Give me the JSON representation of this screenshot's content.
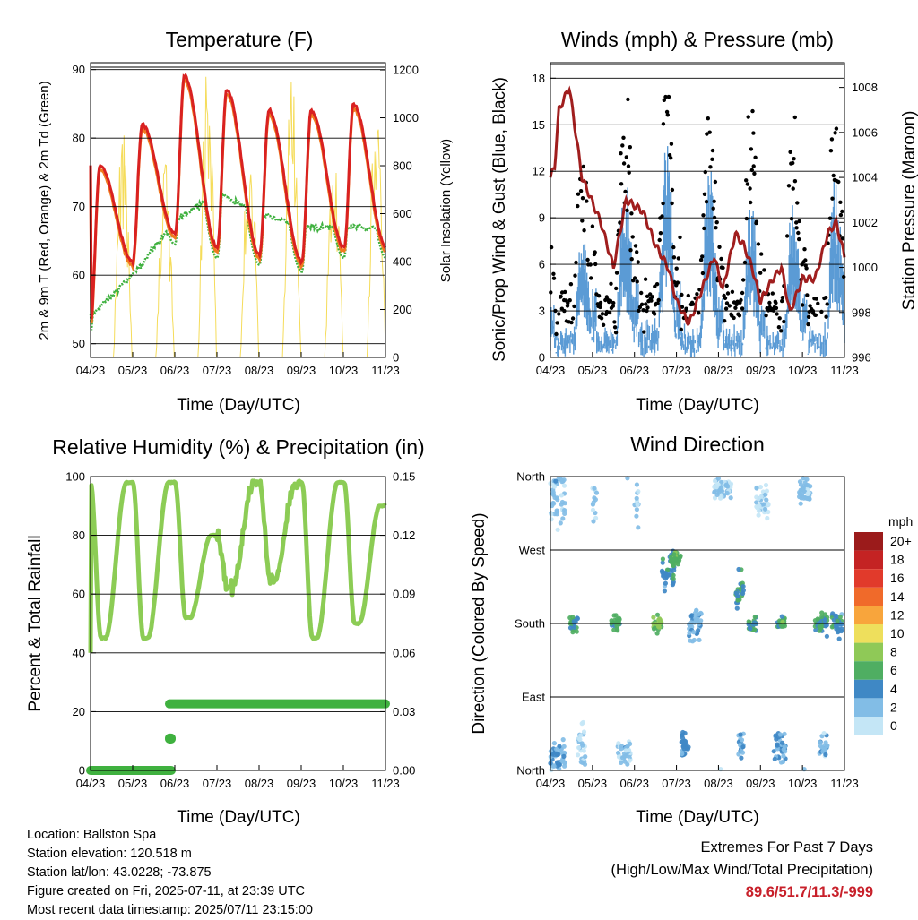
{
  "colors": {
    "temp2m": "#d92121",
    "temp9m": "#f07a1f",
    "dew": "#3fb13f",
    "solar": "#f5dc5a",
    "wind": "#5b9bd5",
    "gust": "#000000",
    "pressure": "#a01e1e",
    "rh": "#8ccc55",
    "rain": "#3fb13f",
    "extremes": "#c8202a"
  },
  "x_ticks": [
    "04/23",
    "05/23",
    "06/23",
    "07/23",
    "08/23",
    "09/23",
    "10/23",
    "11/23"
  ],
  "x_label": "Time (Day/UTC)",
  "panels": {
    "temperature": {
      "title": "Temperature (F)",
      "ylabel_left": "2m & 9m T (Red, Orange) & 2m Td (Green)",
      "ylabel_right": "Solar Insolation (Yellow)",
      "left_ticks": [
        "50",
        "60",
        "70",
        "80",
        "90"
      ],
      "right_ticks": [
        "0",
        "200",
        "400",
        "600",
        "800",
        "1000",
        "1200"
      ]
    },
    "winds": {
      "title": "Winds (mph) & Pressure (mb)",
      "ylabel_left": "Sonic/Prop Wind & Gust (Blue, Black)",
      "ylabel_right": "Station Pressure (Maroon)",
      "left_ticks": [
        "0",
        "3",
        "6",
        "9",
        "12",
        "15",
        "18"
      ],
      "right_ticks": [
        "996",
        "998",
        "1000",
        "1002",
        "1004",
        "1006",
        "1008"
      ]
    },
    "humidity": {
      "title": "Relative Humidity (%) & Precipitation (in)",
      "ylabel_left": "Percent & Total Rainfall",
      "left_ticks": [
        "0",
        "20",
        "40",
        "60",
        "80",
        "100"
      ],
      "right_ticks": [
        "0.00",
        "0.03",
        "0.06",
        "0.09",
        "0.12",
        "0.15"
      ]
    },
    "direction": {
      "title": "Wind Direction",
      "ylabel_left": "Direction (Colored By Speed)",
      "left_ticks": [
        "North",
        "East",
        "South",
        "West",
        "North"
      ],
      "legend_title": "mph",
      "legend_labels": [
        "20+",
        "18",
        "16",
        "14",
        "12",
        "10",
        "8",
        "6",
        "4",
        "2",
        "0"
      ],
      "legend_colors": [
        "#9b1b1b",
        "#c42323",
        "#e13a2b",
        "#f06a2a",
        "#f8a53c",
        "#eedf5c",
        "#8fc957",
        "#4fae62",
        "#3f88c5",
        "#82bde6",
        "#c4e6f6"
      ]
    }
  },
  "chart_data": [
    {
      "type": "line",
      "title": "Temperature (F)",
      "xlabel": "Time (Day/UTC)",
      "ylabel": "2m & 9m T (Red, Orange) & 2m Td (Green)",
      "y2label": "Solar Insolation (Yellow)",
      "x": [
        "04/23",
        "05/23",
        "06/23",
        "07/23",
        "08/23",
        "09/23",
        "10/23",
        "11/23"
      ],
      "ylim": [
        48,
        91
      ],
      "y2lim": [
        0,
        1230
      ],
      "series": [
        {
          "name": "2m T",
          "axis": "left",
          "values": [
            76,
            82,
            89,
            87,
            84,
            84,
            85,
            84
          ]
        },
        {
          "name": "2m Td",
          "axis": "left",
          "values": [
            55,
            62,
            73,
            70,
            67,
            67,
            67,
            67
          ]
        },
        {
          "name": "Solar Insolation",
          "axis": "right",
          "values": [
            0,
            950,
            1200,
            950,
            1200,
            900,
            1100,
            0
          ]
        }
      ]
    },
    {
      "type": "line",
      "title": "Winds (mph) & Pressure (mb)",
      "xlabel": "Time (Day/UTC)",
      "ylabel": "Sonic/Prop Wind & Gust (Blue, Black)",
      "y2label": "Station Pressure (Maroon)",
      "x": [
        "04/23",
        "05/23",
        "06/23",
        "07/23",
        "08/23",
        "09/23",
        "10/23",
        "11/23"
      ],
      "ylim": [
        0,
        19
      ],
      "y2lim": [
        996,
        1009.1
      ],
      "series": [
        {
          "name": "Station Pressure",
          "axis": "right",
          "values": [
            1004,
            1004,
            1001,
            999,
            1000,
            1001,
            999,
            1001
          ]
        },
        {
          "name": "Gust",
          "axis": "left",
          "values": [
            8,
            13,
            17,
            15,
            14,
            13,
            15,
            14
          ]
        }
      ]
    },
    {
      "type": "line",
      "title": "Relative Humidity (%) & Precipitation (in)",
      "xlabel": "Time (Day/UTC)",
      "ylabel": "Percent & Total Rainfall",
      "x": [
        "04/23",
        "05/23",
        "06/23",
        "07/23",
        "08/23",
        "09/23",
        "10/23",
        "11/23"
      ],
      "ylim": [
        0,
        100
      ],
      "y2lim": [
        0,
        0.15
      ],
      "series": [
        {
          "name": "RH",
          "axis": "left",
          "values": [
            40,
            98,
            98,
            62,
            75,
            45,
            98,
            55
          ]
        },
        {
          "name": "Total Rainfall",
          "axis": "right",
          "values": [
            0,
            0,
            0.034,
            0.034,
            0.034,
            0.034,
            0.034,
            0.034
          ]
        }
      ]
    },
    {
      "type": "scatter",
      "title": "Wind Direction",
      "xlabel": "Time (Day/UTC)",
      "ylabel": "Direction (Colored By Speed)",
      "yticks": [
        "North",
        "East",
        "South",
        "West",
        "North"
      ],
      "ylim": [
        0,
        360
      ],
      "colorbar": {
        "title": "mph",
        "levels": [
          "20+",
          "18",
          "16",
          "14",
          "12",
          "10",
          "8",
          "6",
          "4",
          "2",
          "0"
        ]
      }
    }
  ],
  "info": {
    "location": "Location: Ballston Spa",
    "elevation": "Station elevation: 120.518 m",
    "latlon": "Station lat/lon: 43.0228; -73.875",
    "created": "Figure created on Fri, 2025-07-11, at 23:39 UTC",
    "recent": "Most recent data timestamp: 2025/07/11 23:15:00"
  },
  "extremes": {
    "line1": "Extremes For Past 7 Days",
    "line2": "(High/Low/Max Wind/Total Precipitation)",
    "value": "89.6/51.7/11.3/-999"
  }
}
